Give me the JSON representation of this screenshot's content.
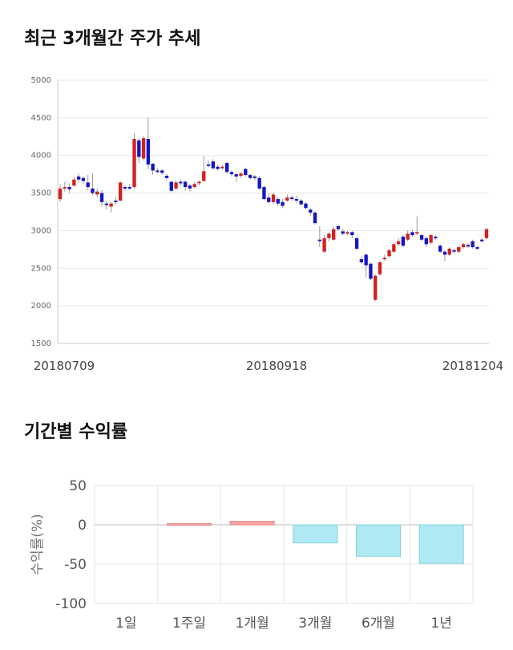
{
  "section1": {
    "title": "최근 3개월간 주가 추세"
  },
  "section2": {
    "title": "기간별 수익률"
  },
  "colors": {
    "up": "#d61f1f",
    "down": "#1414c8",
    "positive_bar": "#f4a3a3",
    "negative_bar": "#aee9f4",
    "grid": "#e6e6e6"
  },
  "chart_data": [
    {
      "type": "candlestick",
      "title": "최근 3개월간 주가 추세",
      "ylim": [
        1500,
        5000
      ],
      "yticks": [
        5000,
        4500,
        4000,
        3500,
        3000,
        2500,
        2000,
        1500
      ],
      "xtick_labels": [
        "20180709",
        "20180918",
        "20181204"
      ],
      "grid": true,
      "candles": [
        {
          "o": 3420,
          "c": 3560,
          "h": 3620,
          "l": 3380
        },
        {
          "o": 3560,
          "c": 3580,
          "h": 3650,
          "l": 3520
        },
        {
          "o": 3580,
          "c": 3550,
          "h": 3630,
          "l": 3500
        },
        {
          "o": 3600,
          "c": 3680,
          "h": 3720,
          "l": 3580
        },
        {
          "o": 3720,
          "c": 3680,
          "h": 3760,
          "l": 3640
        },
        {
          "o": 3700,
          "c": 3660,
          "h": 3720,
          "l": 3620
        },
        {
          "o": 3640,
          "c": 3580,
          "h": 3740,
          "l": 3540
        },
        {
          "o": 3560,
          "c": 3500,
          "h": 3760,
          "l": 3470
        },
        {
          "o": 3480,
          "c": 3520,
          "h": 3560,
          "l": 3440
        },
        {
          "o": 3500,
          "c": 3380,
          "h": 3540,
          "l": 3320
        },
        {
          "o": 3360,
          "c": 3340,
          "h": 3400,
          "l": 3280
        },
        {
          "o": 3320,
          "c": 3360,
          "h": 3380,
          "l": 3240
        },
        {
          "o": 3400,
          "c": 3380,
          "h": 3450,
          "l": 3350
        },
        {
          "o": 3400,
          "c": 3640,
          "h": 3660,
          "l": 3390
        },
        {
          "o": 3580,
          "c": 3560,
          "h": 3600,
          "l": 3530
        },
        {
          "o": 3580,
          "c": 3560,
          "h": 3620,
          "l": 3540
        },
        {
          "o": 3580,
          "c": 4220,
          "h": 4300,
          "l": 3560
        },
        {
          "o": 4200,
          "c": 3980,
          "h": 4230,
          "l": 3900
        },
        {
          "o": 3960,
          "c": 4230,
          "h": 4260,
          "l": 3930
        },
        {
          "o": 4220,
          "c": 3880,
          "h": 4500,
          "l": 3820
        },
        {
          "o": 3890,
          "c": 3800,
          "h": 3900,
          "l": 3740
        },
        {
          "o": 3800,
          "c": 3780,
          "h": 3830,
          "l": 3760
        },
        {
          "o": 3800,
          "c": 3770,
          "h": 3820,
          "l": 3740
        },
        {
          "o": 3730,
          "c": 3700,
          "h": 3750,
          "l": 3680
        },
        {
          "o": 3650,
          "c": 3530,
          "h": 3660,
          "l": 3510
        },
        {
          "o": 3560,
          "c": 3640,
          "h": 3670,
          "l": 3540
        },
        {
          "o": 3650,
          "c": 3630,
          "h": 3680,
          "l": 3600
        },
        {
          "o": 3650,
          "c": 3580,
          "h": 3670,
          "l": 3530
        },
        {
          "o": 3600,
          "c": 3560,
          "h": 3620,
          "l": 3520
        },
        {
          "o": 3580,
          "c": 3620,
          "h": 3650,
          "l": 3560
        },
        {
          "o": 3630,
          "c": 3650,
          "h": 3670,
          "l": 3600
        },
        {
          "o": 3660,
          "c": 3790,
          "h": 3990,
          "l": 3650
        },
        {
          "o": 3880,
          "c": 3860,
          "h": 3930,
          "l": 3840
        },
        {
          "o": 3920,
          "c": 3830,
          "h": 3950,
          "l": 3810
        },
        {
          "o": 3850,
          "c": 3820,
          "h": 3880,
          "l": 3800
        },
        {
          "o": 3830,
          "c": 3850,
          "h": 3870,
          "l": 3810
        },
        {
          "o": 3900,
          "c": 3780,
          "h": 3920,
          "l": 3760
        },
        {
          "o": 3780,
          "c": 3750,
          "h": 3800,
          "l": 3720
        },
        {
          "o": 3750,
          "c": 3720,
          "h": 3770,
          "l": 3650
        },
        {
          "o": 3730,
          "c": 3760,
          "h": 3780,
          "l": 3700
        },
        {
          "o": 3820,
          "c": 3740,
          "h": 3840,
          "l": 3720
        },
        {
          "o": 3740,
          "c": 3700,
          "h": 3760,
          "l": 3680
        },
        {
          "o": 3720,
          "c": 3700,
          "h": 3740,
          "l": 3670
        },
        {
          "o": 3700,
          "c": 3560,
          "h": 3720,
          "l": 3540
        },
        {
          "o": 3580,
          "c": 3420,
          "h": 3600,
          "l": 3400
        },
        {
          "o": 3440,
          "c": 3380,
          "h": 3500,
          "l": 3360
        },
        {
          "o": 3380,
          "c": 3480,
          "h": 3510,
          "l": 3360
        },
        {
          "o": 3420,
          "c": 3360,
          "h": 3450,
          "l": 3330
        },
        {
          "o": 3380,
          "c": 3330,
          "h": 3420,
          "l": 3300
        },
        {
          "o": 3400,
          "c": 3440,
          "h": 3480,
          "l": 3380
        },
        {
          "o": 3440,
          "c": 3420,
          "h": 3470,
          "l": 3400
        },
        {
          "o": 3420,
          "c": 3400,
          "h": 3460,
          "l": 3370
        },
        {
          "o": 3400,
          "c": 3350,
          "h": 3420,
          "l": 3330
        },
        {
          "o": 3360,
          "c": 3300,
          "h": 3380,
          "l": 3280
        },
        {
          "o": 3280,
          "c": 3240,
          "h": 3300,
          "l": 3200
        },
        {
          "o": 3240,
          "c": 3100,
          "h": 3260,
          "l": 3080
        },
        {
          "o": 2880,
          "c": 2860,
          "h": 3060,
          "l": 2780
        },
        {
          "o": 2720,
          "c": 2900,
          "h": 2940,
          "l": 2700
        },
        {
          "o": 2900,
          "c": 2960,
          "h": 2980,
          "l": 2860
        },
        {
          "o": 2880,
          "c": 3020,
          "h": 3060,
          "l": 2870
        },
        {
          "o": 3060,
          "c": 3020,
          "h": 3080,
          "l": 3000
        },
        {
          "o": 2990,
          "c": 2960,
          "h": 3030,
          "l": 2940
        },
        {
          "o": 2960,
          "c": 2980,
          "h": 3000,
          "l": 2940
        },
        {
          "o": 2980,
          "c": 2940,
          "h": 3000,
          "l": 2900
        },
        {
          "o": 2900,
          "c": 2760,
          "h": 2920,
          "l": 2740
        },
        {
          "o": 2620,
          "c": 2580,
          "h": 2660,
          "l": 2560
        },
        {
          "o": 2680,
          "c": 2540,
          "h": 2700,
          "l": 2380
        },
        {
          "o": 2560,
          "c": 2360,
          "h": 2570,
          "l": 2340
        },
        {
          "o": 2080,
          "c": 2400,
          "h": 2420,
          "l": 2060
        },
        {
          "o": 2420,
          "c": 2580,
          "h": 2600,
          "l": 2400
        },
        {
          "o": 2620,
          "c": 2640,
          "h": 2680,
          "l": 2600
        },
        {
          "o": 2660,
          "c": 2740,
          "h": 2760,
          "l": 2640
        },
        {
          "o": 2720,
          "c": 2820,
          "h": 2850,
          "l": 2700
        },
        {
          "o": 2820,
          "c": 2860,
          "h": 2900,
          "l": 2800
        },
        {
          "o": 2920,
          "c": 2800,
          "h": 2950,
          "l": 2780
        },
        {
          "o": 2880,
          "c": 2960,
          "h": 3000,
          "l": 2860
        },
        {
          "o": 2980,
          "c": 2940,
          "h": 3010,
          "l": 2920
        },
        {
          "o": 2960,
          "c": 2980,
          "h": 3190,
          "l": 2940
        },
        {
          "o": 2940,
          "c": 2880,
          "h": 2960,
          "l": 2860
        },
        {
          "o": 2900,
          "c": 2820,
          "h": 2920,
          "l": 2780
        },
        {
          "o": 2840,
          "c": 2940,
          "h": 2960,
          "l": 2820
        },
        {
          "o": 2920,
          "c": 2900,
          "h": 2940,
          "l": 2880
        },
        {
          "o": 2800,
          "c": 2720,
          "h": 2820,
          "l": 2700
        },
        {
          "o": 2720,
          "c": 2680,
          "h": 2740,
          "l": 2600
        },
        {
          "o": 2680,
          "c": 2760,
          "h": 2780,
          "l": 2660
        },
        {
          "o": 2740,
          "c": 2720,
          "h": 2760,
          "l": 2690
        },
        {
          "o": 2720,
          "c": 2780,
          "h": 2800,
          "l": 2700
        },
        {
          "o": 2780,
          "c": 2820,
          "h": 2840,
          "l": 2760
        },
        {
          "o": 2810,
          "c": 2790,
          "h": 2830,
          "l": 2770
        },
        {
          "o": 2860,
          "c": 2780,
          "h": 2880,
          "l": 2760
        },
        {
          "o": 2780,
          "c": 2760,
          "h": 2800,
          "l": 2740
        },
        {
          "o": 2880,
          "c": 2860,
          "h": 2900,
          "l": 2840
        },
        {
          "o": 2900,
          "c": 3020,
          "h": 3040,
          "l": 2880
        }
      ]
    },
    {
      "type": "bar",
      "title": "기간별 수익률",
      "ylabel": "수익률(%)",
      "ylim": [
        -100,
        50
      ],
      "yticks": [
        50,
        0,
        -50,
        -100
      ],
      "categories": [
        "1일",
        "1주일",
        "1개월",
        "3개월",
        "6개월",
        "1년"
      ],
      "values": [
        0,
        1.5,
        4.5,
        -23,
        -40,
        -49
      ],
      "grid": true
    }
  ]
}
